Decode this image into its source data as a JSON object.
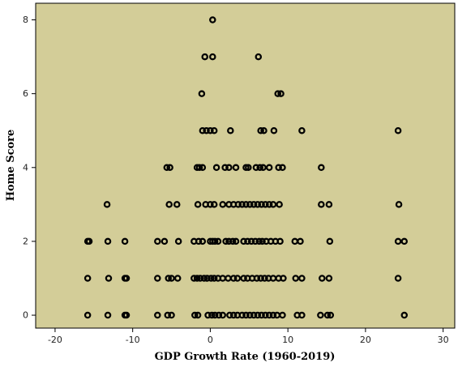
{
  "chart_data": {
    "type": "scatter",
    "title": "",
    "xlabel": "GDP Growth Rate (1960-2019)",
    "ylabel": "Home Score",
    "xlim": [
      -22.5,
      31.5
    ],
    "ylim": [
      -0.35,
      8.45
    ],
    "xticks": [
      -20,
      -10,
      0,
      10,
      20,
      30
    ],
    "yticks": [
      0,
      2,
      4,
      6,
      8
    ],
    "grid": false,
    "legend": "none",
    "colors": {
      "plot_background": "#d3cd98",
      "marker": "#000000"
    },
    "points": [
      [
        0.3,
        8
      ],
      [
        -0.7,
        7
      ],
      [
        0.3,
        7
      ],
      [
        6.2,
        7
      ],
      [
        -1.1,
        6
      ],
      [
        8.7,
        6
      ],
      [
        9.1,
        6
      ],
      [
        -1.0,
        5
      ],
      [
        -0.5,
        5
      ],
      [
        0.0,
        5
      ],
      [
        0.5,
        5
      ],
      [
        2.6,
        5
      ],
      [
        6.5,
        5
      ],
      [
        6.9,
        5
      ],
      [
        8.2,
        5
      ],
      [
        11.8,
        5
      ],
      [
        24.2,
        5
      ],
      [
        -5.6,
        4
      ],
      [
        -5.2,
        4
      ],
      [
        -1.7,
        4
      ],
      [
        -1.4,
        4
      ],
      [
        -1.0,
        4
      ],
      [
        0.8,
        4
      ],
      [
        1.9,
        4
      ],
      [
        2.4,
        4
      ],
      [
        3.3,
        4
      ],
      [
        4.6,
        4
      ],
      [
        4.9,
        4
      ],
      [
        5.9,
        4
      ],
      [
        6.4,
        4
      ],
      [
        6.8,
        4
      ],
      [
        7.6,
        4
      ],
      [
        8.8,
        4
      ],
      [
        9.3,
        4
      ],
      [
        14.3,
        4
      ],
      [
        -13.3,
        3
      ],
      [
        -5.3,
        3
      ],
      [
        -4.3,
        3
      ],
      [
        -1.6,
        3
      ],
      [
        -0.6,
        3
      ],
      [
        0.0,
        3
      ],
      [
        0.5,
        3
      ],
      [
        1.6,
        3
      ],
      [
        2.4,
        3
      ],
      [
        3.0,
        3
      ],
      [
        3.6,
        3
      ],
      [
        4.1,
        3
      ],
      [
        4.6,
        3
      ],
      [
        5.1,
        3
      ],
      [
        5.6,
        3
      ],
      [
        6.1,
        3
      ],
      [
        6.6,
        3
      ],
      [
        7.1,
        3
      ],
      [
        7.6,
        3
      ],
      [
        8.1,
        3
      ],
      [
        8.9,
        3
      ],
      [
        14.3,
        3
      ],
      [
        15.3,
        3
      ],
      [
        24.3,
        3
      ],
      [
        -15.8,
        2
      ],
      [
        -15.6,
        2
      ],
      [
        -13.2,
        2
      ],
      [
        -11.0,
        2
      ],
      [
        -6.8,
        2
      ],
      [
        -5.9,
        2
      ],
      [
        -4.1,
        2
      ],
      [
        -2.1,
        2
      ],
      [
        -1.5,
        2
      ],
      [
        -1.0,
        2
      ],
      [
        0.0,
        2
      ],
      [
        0.3,
        2
      ],
      [
        0.6,
        2
      ],
      [
        1.0,
        2
      ],
      [
        2.0,
        2
      ],
      [
        2.4,
        2
      ],
      [
        2.9,
        2
      ],
      [
        3.3,
        2
      ],
      [
        4.3,
        2
      ],
      [
        4.8,
        2
      ],
      [
        5.3,
        2
      ],
      [
        5.8,
        2
      ],
      [
        6.3,
        2
      ],
      [
        6.7,
        2
      ],
      [
        7.2,
        2
      ],
      [
        7.8,
        2
      ],
      [
        8.4,
        2
      ],
      [
        9.0,
        2
      ],
      [
        10.9,
        2
      ],
      [
        11.6,
        2
      ],
      [
        15.4,
        2
      ],
      [
        24.2,
        2
      ],
      [
        25.0,
        2
      ],
      [
        -15.8,
        1
      ],
      [
        -13.1,
        1
      ],
      [
        -11.0,
        1
      ],
      [
        -10.8,
        1
      ],
      [
        -6.8,
        1
      ],
      [
        -5.4,
        1
      ],
      [
        -5.0,
        1
      ],
      [
        -4.2,
        1
      ],
      [
        -2.1,
        1
      ],
      [
        -1.7,
        1
      ],
      [
        -1.3,
        1
      ],
      [
        -0.8,
        1
      ],
      [
        -0.4,
        1
      ],
      [
        0.1,
        1
      ],
      [
        0.5,
        1
      ],
      [
        1.0,
        1
      ],
      [
        1.6,
        1
      ],
      [
        2.3,
        1
      ],
      [
        3.0,
        1
      ],
      [
        3.5,
        1
      ],
      [
        4.3,
        1
      ],
      [
        4.8,
        1
      ],
      [
        5.4,
        1
      ],
      [
        6.0,
        1
      ],
      [
        6.5,
        1
      ],
      [
        7.0,
        1
      ],
      [
        7.5,
        1
      ],
      [
        8.1,
        1
      ],
      [
        8.8,
        1
      ],
      [
        9.4,
        1
      ],
      [
        11.0,
        1
      ],
      [
        11.8,
        1
      ],
      [
        14.4,
        1
      ],
      [
        15.3,
        1
      ],
      [
        24.2,
        1
      ],
      [
        -15.8,
        0
      ],
      [
        -13.2,
        0
      ],
      [
        -11.0,
        0
      ],
      [
        -10.8,
        0
      ],
      [
        -6.8,
        0
      ],
      [
        -5.5,
        0
      ],
      [
        -5.0,
        0
      ],
      [
        -2.0,
        0
      ],
      [
        -1.6,
        0
      ],
      [
        -0.3,
        0
      ],
      [
        0.2,
        0
      ],
      [
        0.6,
        0
      ],
      [
        1.1,
        0
      ],
      [
        1.6,
        0
      ],
      [
        2.5,
        0
      ],
      [
        3.0,
        0
      ],
      [
        3.5,
        0
      ],
      [
        4.1,
        0
      ],
      [
        4.6,
        0
      ],
      [
        5.1,
        0
      ],
      [
        5.6,
        0
      ],
      [
        6.1,
        0
      ],
      [
        6.6,
        0
      ],
      [
        7.1,
        0
      ],
      [
        7.6,
        0
      ],
      [
        8.1,
        0
      ],
      [
        8.6,
        0
      ],
      [
        9.3,
        0
      ],
      [
        11.2,
        0
      ],
      [
        11.8,
        0
      ],
      [
        14.2,
        0
      ],
      [
        15.1,
        0
      ],
      [
        15.5,
        0
      ],
      [
        25.0,
        0
      ]
    ]
  }
}
